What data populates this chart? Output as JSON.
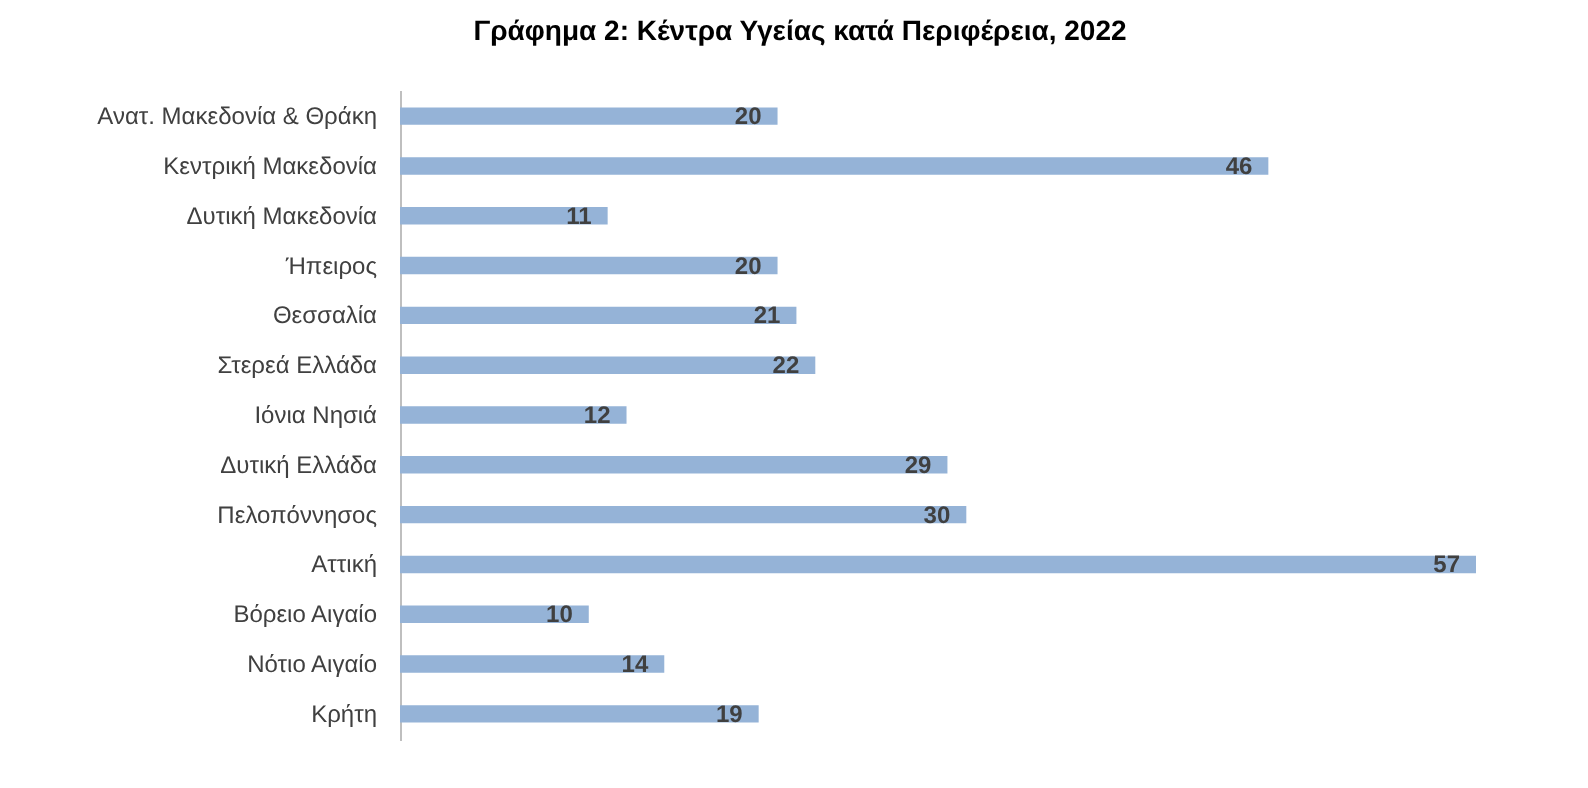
{
  "chart_data": {
    "type": "bar",
    "title": "Γράφημα 2: Κέντρα Υγείας κατά Περιφέρεια, 2022",
    "orientation": "horizontal",
    "data_labels": true,
    "color": "#95b3d7",
    "categories": [
      "Ανατ. Μακεδονία & Θράκη",
      "Κεντρική Μακεδονία",
      "Δυτική Μακεδονία",
      "Ήπειρος",
      "Θεσσαλία",
      "Στερεά Ελλάδα",
      "Ιόνια Νησιά",
      "Δυτική Ελλάδα",
      "Πελοπόννησος",
      "Αττική",
      "Βόρειο Αιγαίο",
      "Νότιο Αιγαίο",
      "Κρήτη"
    ],
    "values": [
      20,
      46,
      11,
      20,
      21,
      22,
      12,
      29,
      30,
      57,
      10,
      14,
      19
    ]
  }
}
